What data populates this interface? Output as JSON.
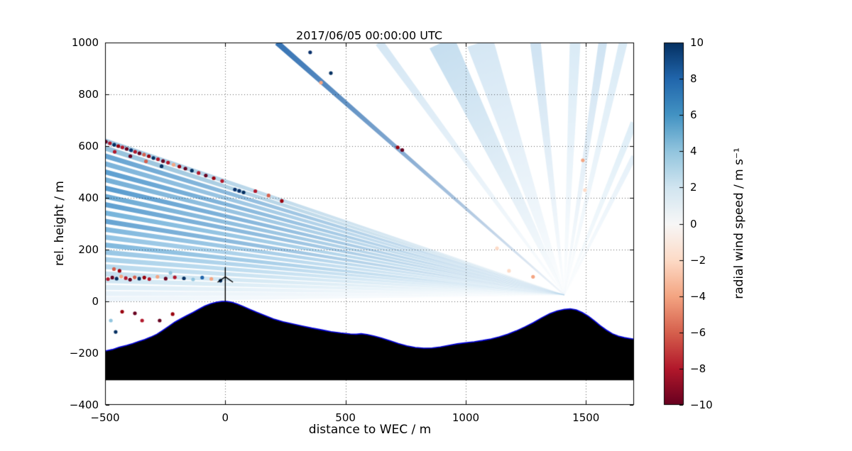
{
  "chart_data": {
    "type": "heatmap",
    "title": "2017/06/05 00:00:00 UTC",
    "xlabel": "distance to WEC / m",
    "ylabel": "rel. height / m",
    "xlim": [
      -500,
      1700
    ],
    "ylim": [
      -400,
      1000
    ],
    "xticks": [
      -500,
      0,
      500,
      1000,
      1500
    ],
    "yticks": [
      -400,
      -200,
      0,
      200,
      400,
      600,
      800,
      1000
    ],
    "grid": true,
    "colorbar": {
      "label": "radial wind speed / m s⁻¹",
      "min": -10,
      "max": 10,
      "ticks": [
        10,
        8,
        6,
        4,
        2,
        0,
        -2,
        -4,
        -6,
        -8,
        -10
      ],
      "colormap": "RdBu",
      "colormap_stops": [
        [
          0.0,
          "#053061"
        ],
        [
          0.1,
          "#2166ac"
        ],
        [
          0.2,
          "#4393c3"
        ],
        [
          0.3,
          "#92c5de"
        ],
        [
          0.4,
          "#d1e5f0"
        ],
        [
          0.5,
          "#f7f7f7"
        ],
        [
          0.6,
          "#fddbc7"
        ],
        [
          0.7,
          "#f4a582"
        ],
        [
          0.8,
          "#d6604d"
        ],
        [
          0.9,
          "#b2182b"
        ],
        [
          1.0,
          "#67001f"
        ]
      ]
    },
    "lidar": {
      "x": 1410,
      "y": 25
    },
    "scan_beams_left": [
      {
        "y": 620,
        "w": 7,
        "c": "#9dc6e0"
      },
      {
        "y": 592,
        "w": 7,
        "c": "#8fbeda"
      },
      {
        "y": 562,
        "w": 7,
        "c": "#5e9fd0"
      },
      {
        "y": 532,
        "w": 7,
        "c": "#74afd8"
      },
      {
        "y": 500,
        "w": 7,
        "c": "#549ace"
      },
      {
        "y": 470,
        "w": 7,
        "c": "#6dabd5"
      },
      {
        "y": 438,
        "w": 7,
        "c": "#4f96cc"
      },
      {
        "y": 406,
        "w": 7,
        "c": "#63a5d2"
      },
      {
        "y": 374,
        "w": 7,
        "c": "#579bce"
      },
      {
        "y": 342,
        "w": 7,
        "c": "#6fb0d9"
      },
      {
        "y": 310,
        "w": 7,
        "c": "#5e9fd0"
      },
      {
        "y": 278,
        "w": 7,
        "c": "#79b4dc"
      },
      {
        "y": 248,
        "w": 7,
        "c": "#8cc0e2"
      },
      {
        "y": 218,
        "w": 7,
        "c": "#7ab5dc"
      },
      {
        "y": 190,
        "w": 7,
        "c": "#93c4e4"
      },
      {
        "y": 162,
        "w": 7,
        "c": "#a5cfe9"
      },
      {
        "y": 134,
        "w": 7,
        "c": "#b4d7ec"
      },
      {
        "y": 106,
        "w": 7,
        "c": "#c3dfef"
      },
      {
        "y": 80,
        "w": 7,
        "c": "#cfe6f3"
      },
      {
        "y": 54,
        "w": 7,
        "c": "#dcecf6"
      },
      {
        "y": 30,
        "w": 7,
        "c": "#e6f1f9"
      },
      {
        "y": 8,
        "w": 7,
        "c": "#edf5fb"
      }
    ],
    "scan_beams_up": [
      {
        "x": 215,
        "w": 8,
        "c": "#2b6cb0"
      },
      {
        "x": 640,
        "w": 12,
        "c": "#d3e6f4"
      },
      {
        "x": 900,
        "w": 38,
        "c": "#c3ddef"
      },
      {
        "x": 1060,
        "w": 38,
        "c": "#d3e6f4"
      },
      {
        "x": 1290,
        "w": 15,
        "c": "#cde2f2"
      },
      {
        "x": 1455,
        "w": 15,
        "c": "#d8eaf6"
      },
      {
        "x": 1570,
        "w": 12,
        "c": "#cde2f2"
      },
      {
        "x": 1655,
        "w": 12,
        "c": "#d8eaf6"
      }
    ],
    "scan_beams_misc": [
      {
        "x": 1700,
        "y": 690,
        "w": 10,
        "c": "#dcedf7"
      },
      {
        "x": 1700,
        "y": 560,
        "w": 8,
        "c": "#e4f0f9"
      }
    ],
    "terrain": {
      "fill": "#000000",
      "edge": "#0000dd",
      "base": -305,
      "points": [
        [
          -500,
          -192
        ],
        [
          -470,
          -186
        ],
        [
          -440,
          -177
        ],
        [
          -410,
          -170
        ],
        [
          -385,
          -163
        ],
        [
          -360,
          -155
        ],
        [
          -335,
          -147
        ],
        [
          -310,
          -138
        ],
        [
          -285,
          -127
        ],
        [
          -260,
          -112
        ],
        [
          -235,
          -96
        ],
        [
          -210,
          -80
        ],
        [
          -185,
          -67
        ],
        [
          -160,
          -55
        ],
        [
          -135,
          -43
        ],
        [
          -110,
          -30
        ],
        [
          -85,
          -18
        ],
        [
          -60,
          -9
        ],
        [
          -35,
          -3
        ],
        [
          -15,
          0
        ],
        [
          5,
          0
        ],
        [
          25,
          -3
        ],
        [
          50,
          -10
        ],
        [
          75,
          -20
        ],
        [
          100,
          -30
        ],
        [
          130,
          -42
        ],
        [
          165,
          -55
        ],
        [
          200,
          -68
        ],
        [
          240,
          -79
        ],
        [
          280,
          -87
        ],
        [
          320,
          -95
        ],
        [
          360,
          -103
        ],
        [
          400,
          -110
        ],
        [
          440,
          -117
        ],
        [
          480,
          -122
        ],
        [
          520,
          -126
        ],
        [
          545,
          -127
        ],
        [
          565,
          -125
        ],
        [
          590,
          -128
        ],
        [
          620,
          -134
        ],
        [
          650,
          -142
        ],
        [
          685,
          -152
        ],
        [
          720,
          -163
        ],
        [
          755,
          -172
        ],
        [
          790,
          -178
        ],
        [
          825,
          -181
        ],
        [
          860,
          -180
        ],
        [
          895,
          -176
        ],
        [
          930,
          -170
        ],
        [
          965,
          -164
        ],
        [
          1000,
          -160
        ],
        [
          1035,
          -156
        ],
        [
          1070,
          -151
        ],
        [
          1105,
          -145
        ],
        [
          1140,
          -137
        ],
        [
          1175,
          -127
        ],
        [
          1210,
          -114
        ],
        [
          1245,
          -99
        ],
        [
          1280,
          -83
        ],
        [
          1315,
          -64
        ],
        [
          1350,
          -47
        ],
        [
          1380,
          -37
        ],
        [
          1410,
          -31
        ],
        [
          1435,
          -29
        ],
        [
          1460,
          -33
        ],
        [
          1485,
          -43
        ],
        [
          1510,
          -57
        ],
        [
          1535,
          -75
        ],
        [
          1560,
          -94
        ],
        [
          1585,
          -111
        ],
        [
          1610,
          -125
        ],
        [
          1635,
          -134
        ],
        [
          1660,
          -140
        ],
        [
          1680,
          -143
        ],
        [
          1700,
          -146
        ]
      ]
    },
    "turbine": {
      "x": 0,
      "base": 0,
      "hub": 95,
      "blades": [
        [
          0,
          36
        ],
        [
          -32,
          -21
        ],
        [
          32,
          -21
        ]
      ]
    },
    "dots": [
      [
        -497,
        617,
        "#67001f"
      ],
      [
        -480,
        611,
        "#b2182b"
      ],
      [
        -462,
        605,
        "#053061"
      ],
      [
        -445,
        600,
        "#99000d"
      ],
      [
        -428,
        595,
        "#b2182b"
      ],
      [
        -410,
        589,
        "#67001f"
      ],
      [
        -392,
        584,
        "#08306b"
      ],
      [
        -375,
        578,
        "#b2182b"
      ],
      [
        -357,
        572,
        "#67001f"
      ],
      [
        -338,
        567,
        "#d6604d"
      ],
      [
        -318,
        561,
        "#99000d"
      ],
      [
        -299,
        554,
        "#053061"
      ],
      [
        -280,
        549,
        "#b2182b"
      ],
      [
        -259,
        542,
        "#67001f"
      ],
      [
        -238,
        536,
        "#b2182b"
      ],
      [
        -215,
        528,
        "#f4a582"
      ],
      [
        -191,
        521,
        "#99000d"
      ],
      [
        -166,
        513,
        "#67001f"
      ],
      [
        -139,
        505,
        "#053061"
      ],
      [
        -111,
        496,
        "#b2182b"
      ],
      [
        -81,
        486,
        "#67001f"
      ],
      [
        -48,
        476,
        "#99000d"
      ],
      [
        -13,
        465,
        "#b2182b"
      ],
      [
        40,
        432,
        "#08306b"
      ],
      [
        58,
        427,
        "#08306b"
      ],
      [
        76,
        421,
        "#053061"
      ],
      [
        125,
        426,
        "#b2182b"
      ],
      [
        180,
        409,
        "#d6604d"
      ],
      [
        235,
        388,
        "#99000d"
      ],
      [
        -460,
        578,
        "#b2182b"
      ],
      [
        -395,
        561,
        "#67001f"
      ],
      [
        -330,
        541,
        "#d6604d"
      ],
      [
        -265,
        522,
        "#053061"
      ],
      [
        353,
        962,
        "#08306b"
      ],
      [
        439,
        882,
        "#053061"
      ],
      [
        398,
        845,
        "#f4a582"
      ],
      [
        717,
        595,
        "#99000d"
      ],
      [
        736,
        585,
        "#67001f"
      ],
      [
        1130,
        205,
        "#fddbc7"
      ],
      [
        1487,
        545,
        "#f4a582"
      ],
      [
        1496,
        430,
        "#fddbc7"
      ],
      [
        1280,
        95,
        "#f4a582"
      ],
      [
        1180,
        118,
        "#fddbc7"
      ],
      [
        -488,
        86,
        "#b2182b"
      ],
      [
        -470,
        92,
        "#67001f"
      ],
      [
        -452,
        88,
        "#053061"
      ],
      [
        -433,
        96,
        "#f4a582"
      ],
      [
        -414,
        90,
        "#b2182b"
      ],
      [
        -396,
        84,
        "#67001f"
      ],
      [
        -377,
        93,
        "#d6604d"
      ],
      [
        -358,
        88,
        "#053061"
      ],
      [
        -337,
        92,
        "#99000d"
      ],
      [
        -316,
        86,
        "#b2182b"
      ],
      [
        -282,
        95,
        "#f4a582"
      ],
      [
        -248,
        88,
        "#67001f"
      ],
      [
        -210,
        93,
        "#b2182b"
      ],
      [
        -172,
        89,
        "#053061"
      ],
      [
        -134,
        85,
        "#92c5de"
      ],
      [
        -96,
        92,
        "#2166ac"
      ],
      [
        -58,
        87,
        "#f4a582"
      ],
      [
        -20,
        80,
        "#053061"
      ],
      [
        -463,
        125,
        "#d6604d"
      ],
      [
        -440,
        118,
        "#99000d"
      ],
      [
        -228,
        110,
        "#92c5de"
      ],
      [
        -476,
        -74,
        "#92c5de"
      ],
      [
        -456,
        -118,
        "#053061"
      ],
      [
        -429,
        -40,
        "#99000d"
      ],
      [
        -376,
        -46,
        "#67001f"
      ],
      [
        -346,
        -74,
        "#b2182b"
      ],
      [
        -273,
        -74,
        "#67001f"
      ],
      [
        -219,
        -49,
        "#99000d"
      ]
    ]
  }
}
